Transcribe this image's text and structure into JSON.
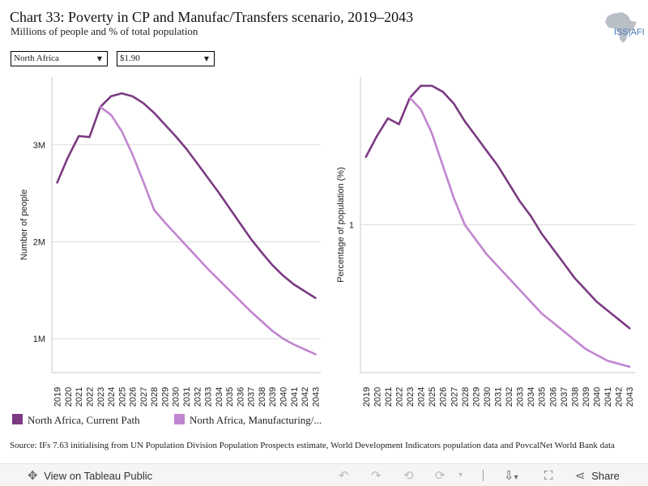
{
  "header": {
    "title": "Chart 33: Poverty in CP and Manufac/Transfers scenario, 2019–2043",
    "subtitle": "Millions of people and % of total population",
    "logo_text": "ISS|AFI"
  },
  "filters": {
    "region": "North Africa",
    "poverty_line": "$1.90"
  },
  "legend": [
    {
      "label": "North Africa, Current Path",
      "color": "#7b3a82"
    },
    {
      "label": "North Africa, Manufacturing/...",
      "color": "#c185cf"
    }
  ],
  "source": "Source: IFs 7.63 initialising from UN Population Division Population Prospects estimate, World Development Indicators population data and PovcalNet World Bank data",
  "footer": {
    "view_label": "View on Tableau Public",
    "share_label": "Share"
  },
  "chart_data": [
    {
      "type": "line",
      "ylabel": "Number of people",
      "y_unit": "people",
      "ylim": [
        0.65,
        3.7
      ],
      "y_ticks": [
        {
          "value": 1,
          "label": "1M"
        },
        {
          "value": 2,
          "label": "2M"
        },
        {
          "value": 3,
          "label": "3M"
        }
      ],
      "x": [
        2019,
        2020,
        2021,
        2022,
        2023,
        2024,
        2025,
        2026,
        2027,
        2028,
        2029,
        2030,
        2031,
        2032,
        2033,
        2034,
        2035,
        2036,
        2037,
        2038,
        2039,
        2040,
        2041,
        2042,
        2043
      ],
      "series": [
        {
          "name": "North Africa, Current Path",
          "color": "#7b3a82",
          "values": [
            2.61,
            2.87,
            3.09,
            3.08,
            3.39,
            3.5,
            3.53,
            3.5,
            3.43,
            3.33,
            3.21,
            3.09,
            2.96,
            2.81,
            2.66,
            2.51,
            2.35,
            2.19,
            2.03,
            1.89,
            1.76,
            1.65,
            1.56,
            1.49,
            1.42
          ]
        },
        {
          "name": "North Africa, Manufacturing/...",
          "color": "#c185cf",
          "values": [
            null,
            null,
            null,
            null,
            3.39,
            3.31,
            3.14,
            2.9,
            2.62,
            2.33,
            2.2,
            2.08,
            1.96,
            1.84,
            1.72,
            1.61,
            1.5,
            1.39,
            1.28,
            1.18,
            1.08,
            1.0,
            0.94,
            0.89,
            0.84
          ]
        }
      ],
      "grid": true
    },
    {
      "type": "line",
      "ylabel": "Percentage of population (%)",
      "y_unit": "%",
      "ylim": [
        0.5,
        1.5
      ],
      "y_ticks": [
        {
          "value": 1,
          "label": "1"
        }
      ],
      "x": [
        2019,
        2020,
        2021,
        2022,
        2023,
        2024,
        2025,
        2026,
        2027,
        2028,
        2029,
        2030,
        2031,
        2032,
        2033,
        2034,
        2035,
        2036,
        2037,
        2038,
        2039,
        2040,
        2041,
        2042,
        2043
      ],
      "series": [
        {
          "name": "North Africa, Current Path",
          "color": "#7b3a82",
          "values": [
            1.23,
            1.3,
            1.36,
            1.34,
            1.43,
            1.47,
            1.47,
            1.45,
            1.41,
            1.35,
            1.3,
            1.25,
            1.2,
            1.14,
            1.08,
            1.03,
            0.97,
            0.92,
            0.87,
            0.82,
            0.78,
            0.74,
            0.71,
            0.68,
            0.65
          ]
        },
        {
          "name": "North Africa, Manufacturing/...",
          "color": "#c185cf",
          "values": [
            null,
            null,
            null,
            null,
            1.43,
            1.39,
            1.31,
            1.2,
            1.09,
            1.0,
            0.95,
            0.9,
            0.86,
            0.82,
            0.78,
            0.74,
            0.7,
            0.67,
            0.64,
            0.61,
            0.58,
            0.56,
            0.54,
            0.53,
            0.52
          ]
        }
      ],
      "grid": true
    }
  ]
}
